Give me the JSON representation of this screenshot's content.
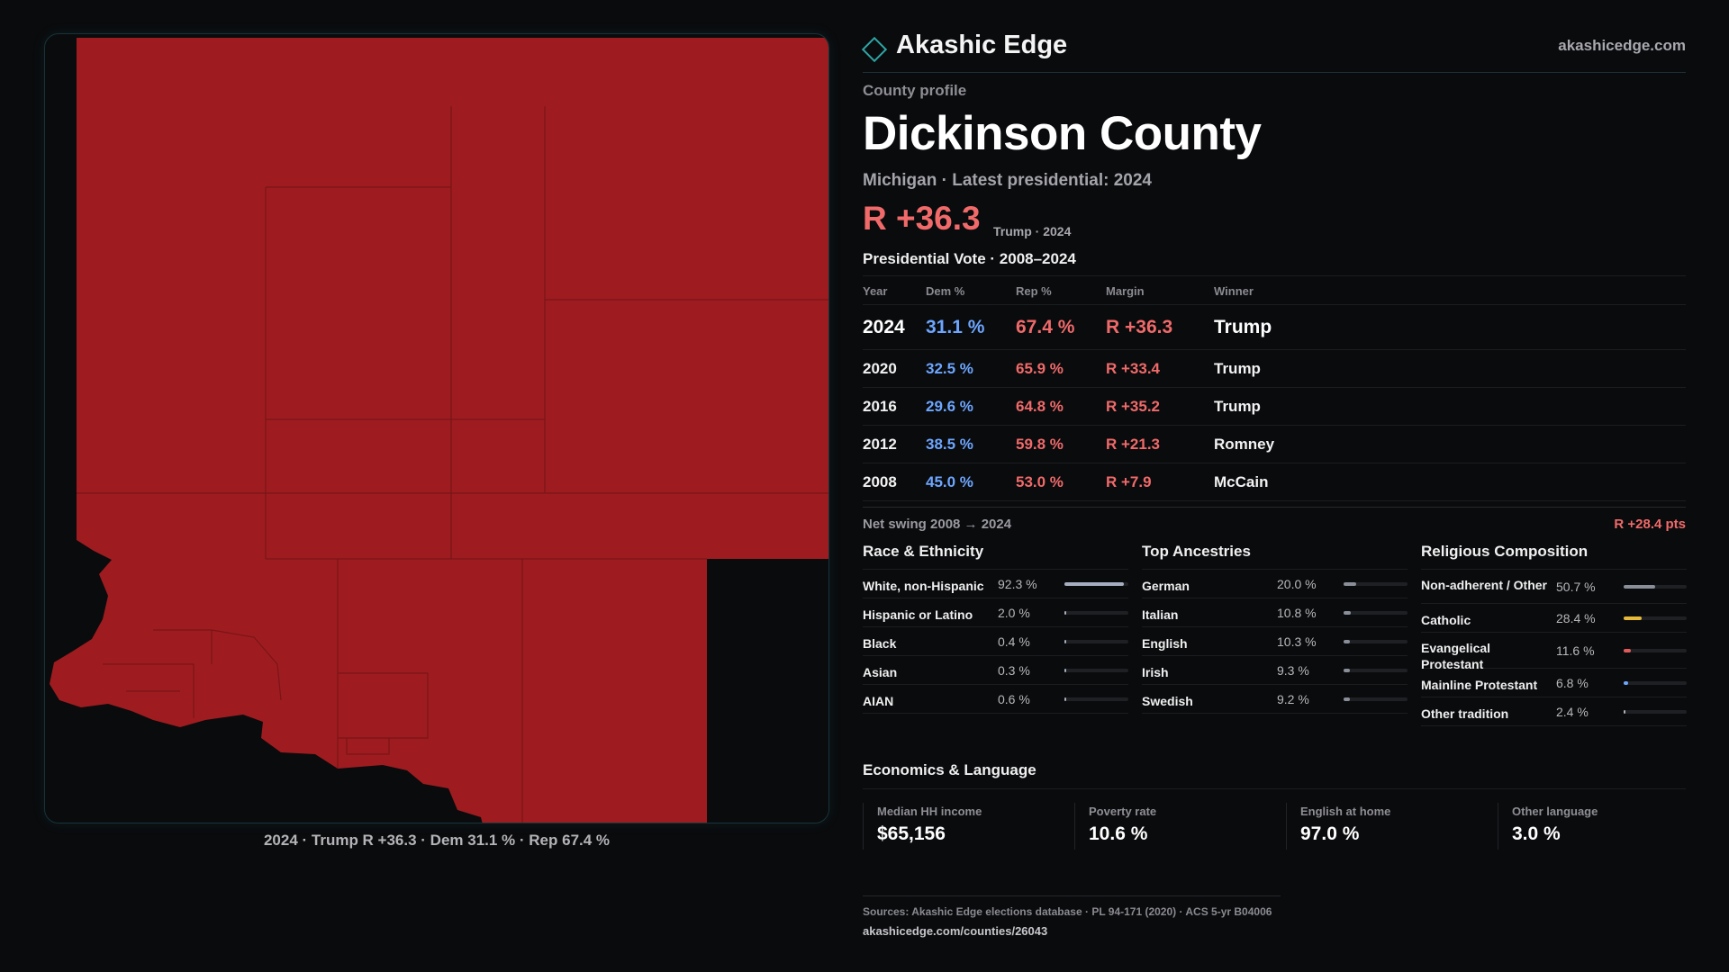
{
  "map": {
    "fill_color": "#9e1c20",
    "caption": "2024 · Trump R +36.3 · Dem 31.1 % · Rep 67.4 %"
  },
  "brand": {
    "name": "Akashic Edge",
    "url": "akashicedge.com",
    "accent": "#2fa6a6"
  },
  "profile": {
    "eyebrow": "County profile",
    "title": "Dickinson County",
    "subtitle": "Michigan · Latest presidential: 2024",
    "margin": "R +36.3",
    "margin_note": "Trump · 2024"
  },
  "vote": {
    "heading": "Presidential Vote · 2008–2024",
    "columns": [
      "Year",
      "Dem %",
      "Rep %",
      "Margin",
      "Winner"
    ],
    "rows": [
      {
        "year": "2024",
        "dem": "31.1 %",
        "rep": "67.4 %",
        "margin": "R +36.3",
        "winner": "Trump"
      },
      {
        "year": "2020",
        "dem": "32.5 %",
        "rep": "65.9 %",
        "margin": "R +33.4",
        "winner": "Trump"
      },
      {
        "year": "2016",
        "dem": "29.6 %",
        "rep": "64.8 %",
        "margin": "R +35.2",
        "winner": "Trump"
      },
      {
        "year": "2012",
        "dem": "38.5 %",
        "rep": "59.8 %",
        "margin": "R +21.3",
        "winner": "Romney"
      },
      {
        "year": "2008",
        "dem": "45.0 %",
        "rep": "53.0 %",
        "margin": "R +7.9",
        "winner": "McCain"
      }
    ],
    "dem_color": "#6da6ff",
    "rep_color": "#f06a6a"
  },
  "swing": {
    "label": "Net swing 2008 → 2024",
    "value": "R +28.4 pts"
  },
  "race": {
    "heading": "Race & Ethnicity",
    "bar_color": "#a6aec0",
    "items": [
      {
        "label": "White, non-Hispanic",
        "value": "92.3 %",
        "pct": 92.3
      },
      {
        "label": "Hispanic or Latino",
        "value": "2.0 %",
        "pct": 2.0
      },
      {
        "label": "Black",
        "value": "0.4 %",
        "pct": 0.4
      },
      {
        "label": "Asian",
        "value": "0.3 %",
        "pct": 0.3
      },
      {
        "label": "AIAN",
        "value": "0.6 %",
        "pct": 0.6
      }
    ]
  },
  "ancestry": {
    "heading": "Top Ancestries",
    "bar_color": "#8a8e98",
    "items": [
      {
        "label": "German",
        "value": "20.0 %",
        "pct": 20.0
      },
      {
        "label": "Italian",
        "value": "10.8 %",
        "pct": 10.8
      },
      {
        "label": "English",
        "value": "10.3 %",
        "pct": 10.3
      },
      {
        "label": "Irish",
        "value": "9.3 %",
        "pct": 9.3
      },
      {
        "label": "Swedish",
        "value": "9.2 %",
        "pct": 9.2
      }
    ]
  },
  "religion": {
    "heading": "Religious Composition",
    "items": [
      {
        "label": "Non-adherent / Other",
        "value": "50.7 %",
        "pct": 50.7,
        "color": "#8a8e98"
      },
      {
        "label": "Catholic",
        "value": "28.4 %",
        "pct": 28.4,
        "color": "#e6b93a"
      },
      {
        "label": "Evangelical Protestant",
        "value": "11.6 %",
        "pct": 11.6,
        "color": "#e05a5a"
      },
      {
        "label": "Mainline Protestant",
        "value": "6.8 %",
        "pct": 6.8,
        "color": "#6da6ff"
      },
      {
        "label": "Other tradition",
        "value": "2.4 %",
        "pct": 2.4,
        "color": "#b0b0b6"
      }
    ]
  },
  "economics": {
    "heading": "Economics & Language",
    "cells": [
      {
        "label": "Median HH income",
        "value": "$65,156"
      },
      {
        "label": "Poverty rate",
        "value": "10.6 %"
      },
      {
        "label": "English at home",
        "value": "97.0 %"
      },
      {
        "label": "Other language",
        "value": "3.0 %"
      }
    ]
  },
  "sources": {
    "text": "Sources: Akashic Edge elections database · PL 94-171 (2020) · ACS 5-yr B04006",
    "url": "akashicedge.com/counties/26043"
  }
}
